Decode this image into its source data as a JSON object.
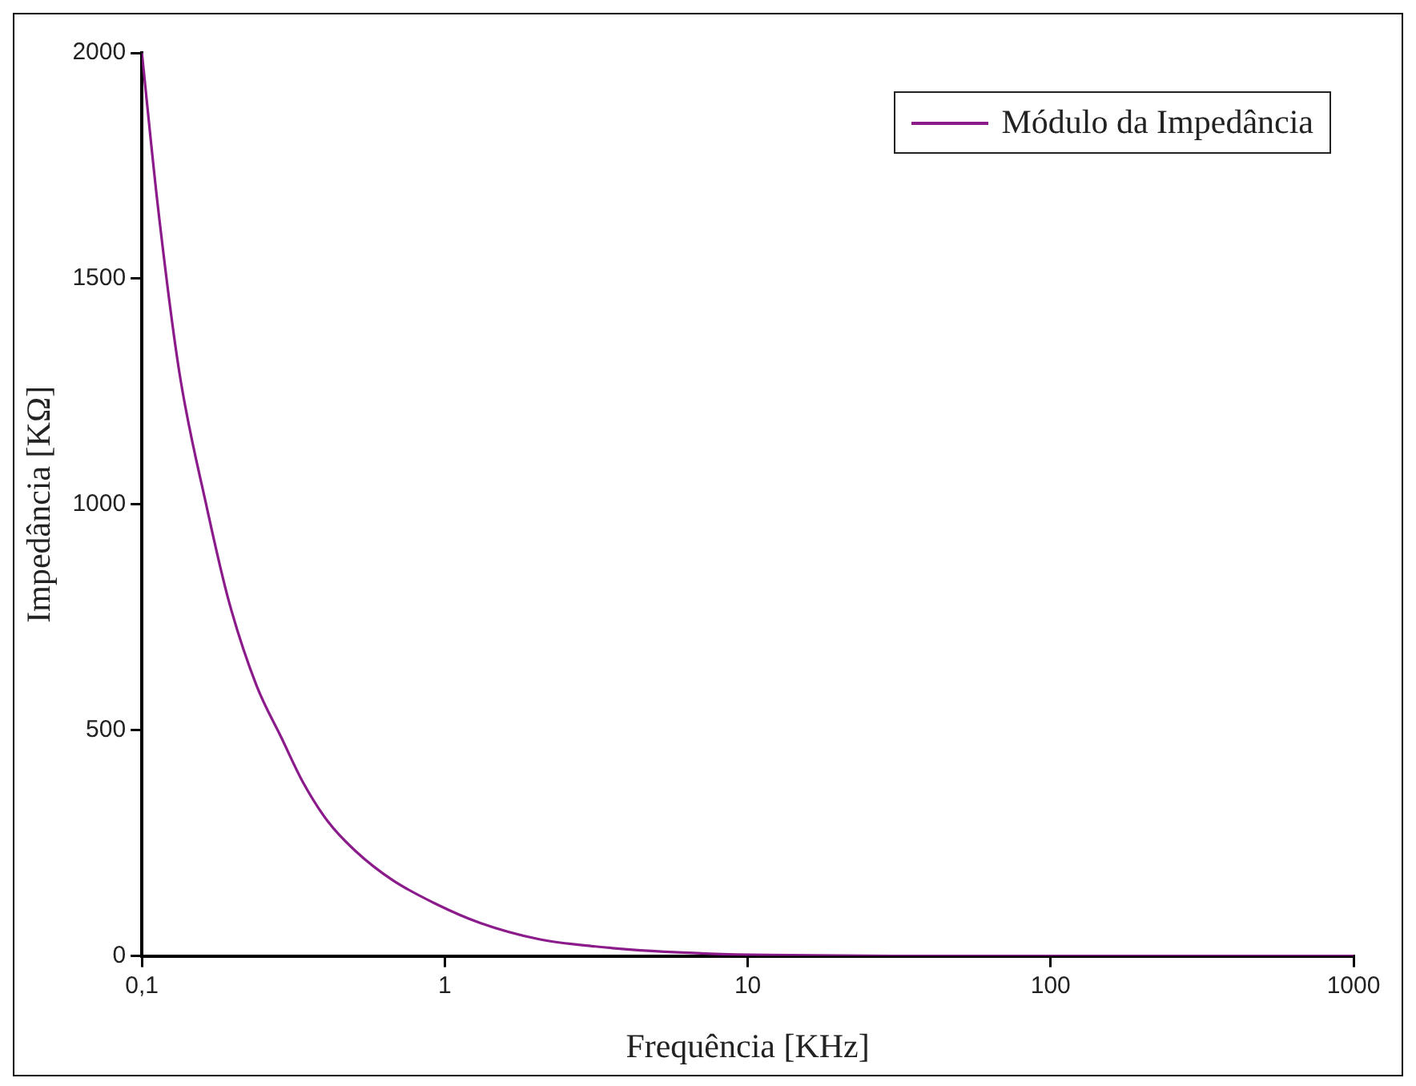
{
  "chart_data": {
    "type": "line",
    "xlabel": "Frequência [KHz]",
    "ylabel": "Impedância [KΩ]",
    "x": [
      0.1,
      0.113,
      0.133,
      0.164,
      0.194,
      0.239,
      0.289,
      0.34,
      0.41,
      0.506,
      0.672,
      0.93,
      1.31,
      2.05,
      3.14,
      4.83,
      7.51,
      11.5,
      30,
      100,
      1000
    ],
    "series": [
      {
        "name": "Módulo da Impedância",
        "color": "#8b1a8b",
        "values": [
          2000,
          1659,
          1292,
          992,
          784,
          599,
          483,
          385,
          299,
          233,
          168,
          116,
          73,
          37,
          21,
          11,
          5,
          2,
          0,
          0,
          0
        ]
      }
    ],
    "xlim": [
      0.1,
      1000
    ],
    "xticks": [
      {
        "value": 0.1,
        "label": "0,1"
      },
      1,
      10,
      100,
      1000
    ],
    "ylim": [
      0,
      2000
    ],
    "yticks": [
      0,
      500,
      1000,
      1500,
      2000
    ],
    "log": "x",
    "grid": false,
    "legend": "top right",
    "marker": "none",
    "line_style": "solid"
  }
}
